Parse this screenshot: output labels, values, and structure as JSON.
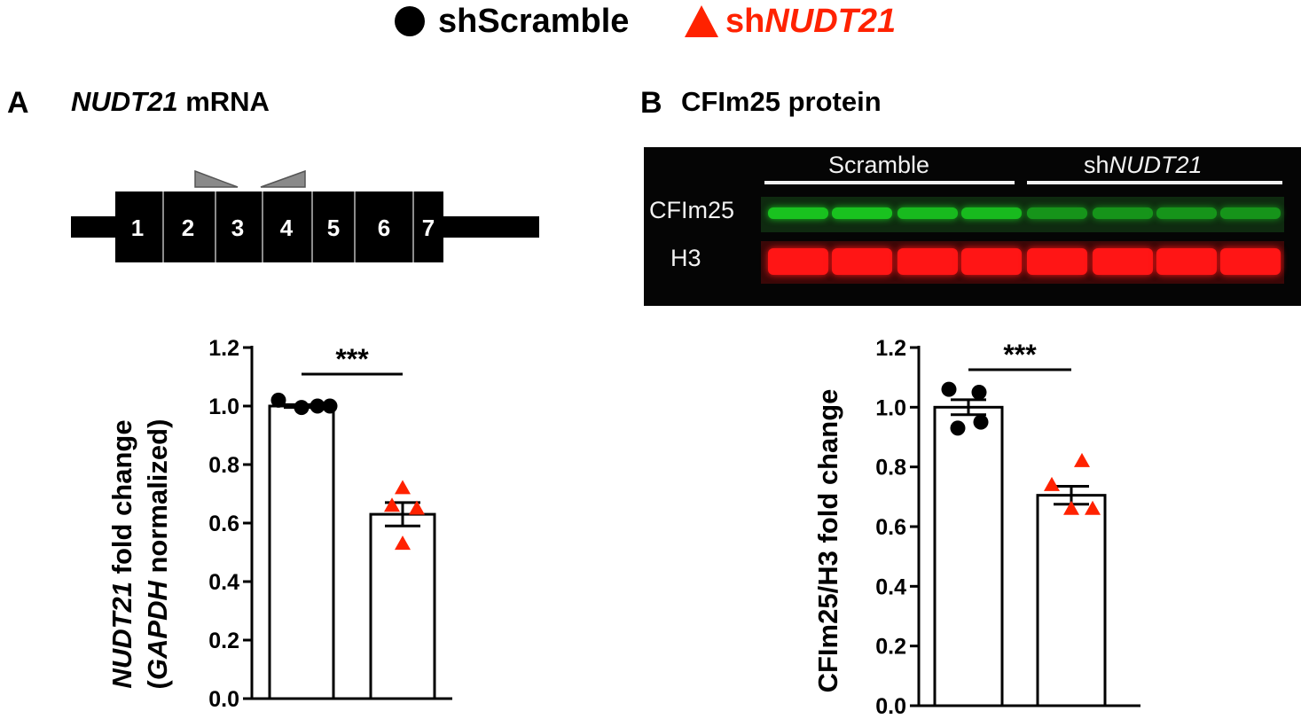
{
  "legend": {
    "items": [
      {
        "marker": "circle",
        "color": "#000000",
        "prefix": "shScramble",
        "italic": ""
      },
      {
        "marker": "triangle",
        "color": "#ff2200",
        "prefix": "sh",
        "italic": "NUDT21"
      }
    ]
  },
  "panel_a": {
    "letter": "A",
    "title_italic": "NUDT21",
    "title_rest": " mRNA",
    "exons": [
      "1",
      "2",
      "3",
      "4",
      "5",
      "6",
      "7"
    ]
  },
  "panel_b": {
    "letter": "B",
    "title": "CFIm25 protein",
    "blot": {
      "group_left": "Scramble",
      "group_right_prefix": "sh",
      "group_right_italic": "NUDT21",
      "row_top": "CFIm25",
      "row_bottom": "H3",
      "top_band_color": "#19c21f",
      "bottom_band_color": "#ff1515",
      "top_band_intensity": [
        1.0,
        1.0,
        0.95,
        0.95,
        0.7,
        0.7,
        0.7,
        0.7
      ],
      "bottom_band_intensity": [
        1.0,
        1.0,
        1.0,
        1.0,
        1.0,
        1.0,
        1.0,
        1.0
      ]
    }
  },
  "chart_data": [
    {
      "type": "bar",
      "panel": "A",
      "categories": [
        "shScramble",
        "shNUDT21"
      ],
      "values": [
        1.0,
        0.63
      ],
      "sem": [
        0.005,
        0.04
      ],
      "points": [
        [
          1.02,
          1.0,
          0.995,
          1.0
        ],
        [
          0.72,
          0.66,
          0.65,
          0.53
        ]
      ],
      "marker_colors": [
        "#000000",
        "#ff2200"
      ],
      "markers": [
        "circle",
        "triangle"
      ],
      "ylabel_italic": "NUDT21",
      "ylabel_rest": " fold change",
      "ylabel2_open": "(",
      "ylabel2_italic": "GAPDH",
      "ylabel2_rest": " normalized)",
      "ylim": [
        0,
        1.2
      ],
      "yticks": [
        "0.0",
        "0.2",
        "0.4",
        "0.6",
        "0.8",
        "1.0",
        "1.2"
      ],
      "significance": "***"
    },
    {
      "type": "bar",
      "panel": "B",
      "categories": [
        "shScramble",
        "shNUDT21"
      ],
      "values": [
        1.0,
        0.705
      ],
      "sem": [
        0.025,
        0.03
      ],
      "points": [
        [
          1.06,
          1.05,
          0.95,
          0.93
        ],
        [
          0.82,
          0.74,
          0.66,
          0.66
        ]
      ],
      "marker_colors": [
        "#000000",
        "#ff2200"
      ],
      "markers": [
        "circle",
        "triangle"
      ],
      "ylabel": "CFIm25/H3 fold change",
      "ylim": [
        0,
        1.2
      ],
      "yticks": [
        "0.0",
        "0.2",
        "0.4",
        "0.6",
        "0.8",
        "1.0",
        "1.2"
      ],
      "significance": "***"
    }
  ]
}
